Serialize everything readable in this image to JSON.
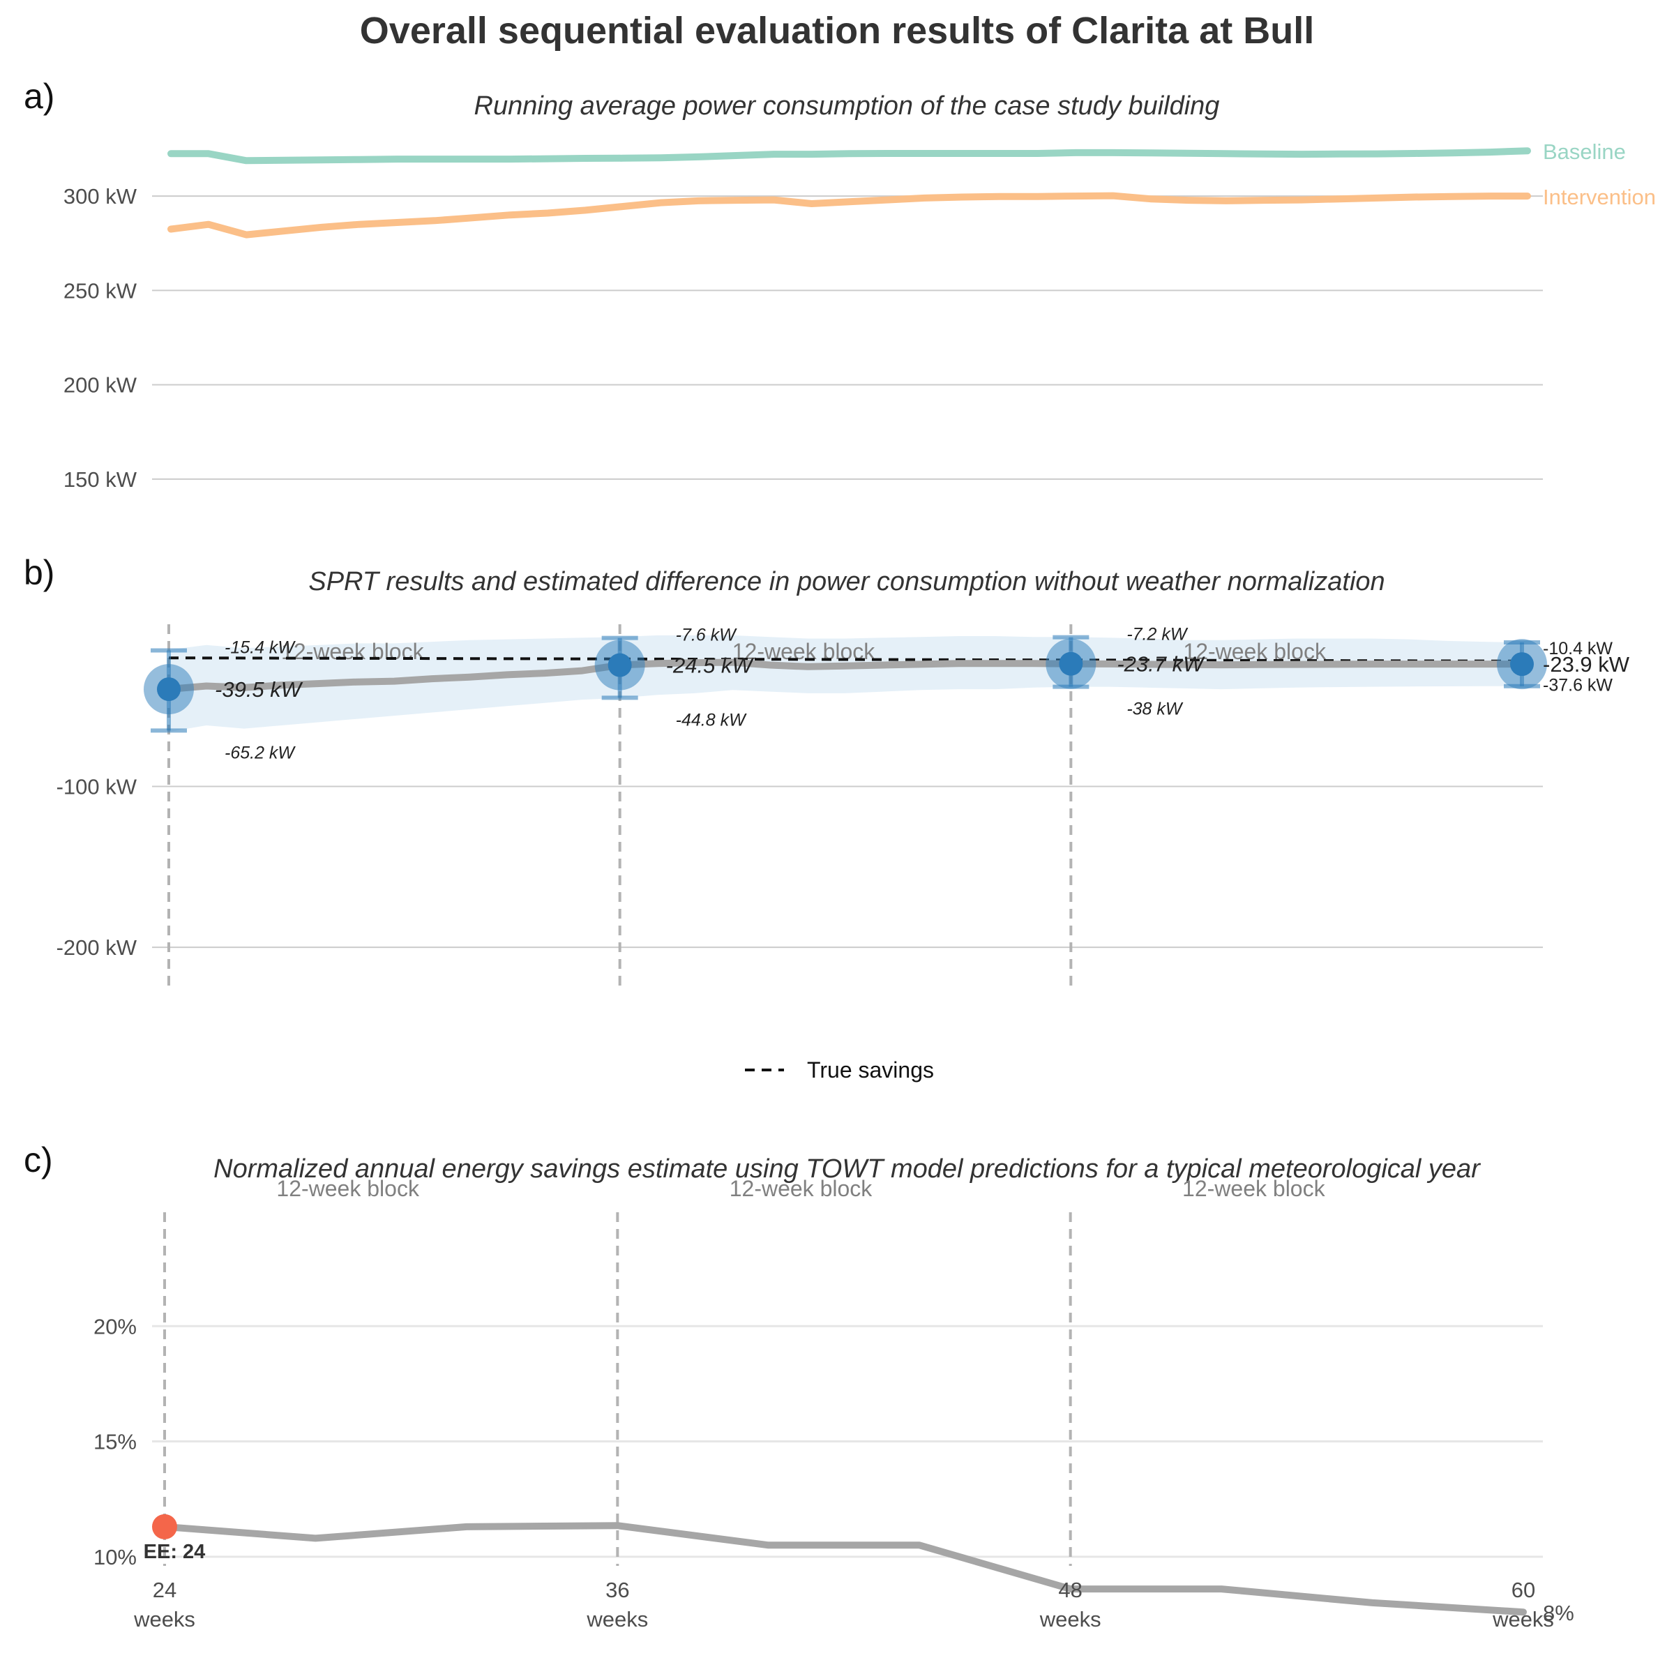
{
  "title": "Overall sequential evaluation results of Clarita at Bull",
  "colors": {
    "baseline": "#99d5c4",
    "intervention": "#fbbf88",
    "difference": "#a6a6a6",
    "point": "#2b7bb9",
    "ribbon": "#dcebf6",
    "true_savings": "#111111",
    "early_end": "#f4664a"
  },
  "chart_data": [
    {
      "tag": "a)",
      "type": "line",
      "title": "Running average power consumption of the case study building",
      "ylim": [
        130,
        330
      ],
      "yticks": [
        150,
        200,
        250,
        300
      ],
      "ytick_labels": [
        "150 kW",
        "200 kW",
        "250 kW",
        "300 kW"
      ],
      "grid": true,
      "x": [
        24,
        25,
        26,
        27,
        28,
        29,
        30,
        31,
        32,
        33,
        34,
        35,
        36,
        37,
        38,
        39,
        40,
        41,
        42,
        43,
        44,
        45,
        46,
        47,
        48,
        49,
        50,
        51,
        52,
        53,
        54,
        55,
        56,
        57,
        58,
        59,
        60
      ],
      "series": [
        {
          "name": "Baseline",
          "values": [
            322.5,
            322.5,
            318.8,
            319,
            319.2,
            319.4,
            319.6,
            319.6,
            319.6,
            319.6,
            319.8,
            320,
            320.1,
            320.3,
            320.8,
            321.5,
            322.2,
            322.2,
            322.5,
            322.6,
            322.6,
            322.6,
            322.6,
            322.6,
            323,
            323,
            322.9,
            322.7,
            322.5,
            322.3,
            322.2,
            322.3,
            322.4,
            322.6,
            322.9,
            323.3,
            324
          ]
        },
        {
          "name": "Intervention",
          "values": [
            282.5,
            285,
            279.5,
            281.5,
            283.5,
            285,
            286,
            287,
            288.5,
            290,
            291,
            292.5,
            294.5,
            296.5,
            297.5,
            297.8,
            298,
            296,
            297,
            298,
            299,
            299.5,
            299.8,
            299.8,
            300,
            300.2,
            298.5,
            297.8,
            297.5,
            297.8,
            298,
            298.5,
            299,
            299.5,
            299.8,
            300,
            300
          ]
        }
      ]
    },
    {
      "tag": "b)",
      "type": "line",
      "title": "SPRT results and estimated difference in power consumption without weather normalization",
      "ylim": [
        -226,
        10
      ],
      "yticks": [
        -100,
        -200
      ],
      "ytick_labels": [
        "-100 kW",
        "-200 kW"
      ],
      "grid": true,
      "block_label": "12-week block",
      "x": [
        24,
        25,
        26,
        27,
        28,
        29,
        30,
        31,
        32,
        33,
        34,
        35,
        36,
        37,
        38,
        39,
        40,
        41,
        42,
        43,
        44,
        45,
        46,
        47,
        48,
        49,
        50,
        51,
        52,
        53,
        54,
        55,
        56,
        57,
        58,
        59,
        60
      ],
      "series": [
        {
          "name": "Estimated difference",
          "values": [
            -39.5,
            -37.5,
            -38.5,
            -37,
            -36,
            -35,
            -34.5,
            -33,
            -32,
            -30.5,
            -29.5,
            -28,
            -24.5,
            -23.5,
            -23,
            -22.8,
            -24.5,
            -25.5,
            -25,
            -24.5,
            -24,
            -23.5,
            -23.5,
            -23.5,
            -23.7,
            -23.8,
            -24,
            -24.2,
            -24.3,
            -24.2,
            -24.1,
            -24,
            -23.9,
            -23.9,
            -23.9,
            -23.9,
            -23.9
          ],
          "upper": [
            -15,
            -12,
            -14,
            -13,
            -12,
            -11,
            -11,
            -10,
            -9,
            -8.5,
            -8,
            -7.5,
            -7,
            -6,
            -6,
            -6,
            -7,
            -8,
            -8,
            -7.5,
            -7,
            -6.5,
            -6.5,
            -7,
            -7,
            -7.5,
            -8,
            -9,
            -9,
            -8.5,
            -8,
            -8,
            -8,
            -8.5,
            -9.5,
            -10,
            -10.5
          ],
          "lower": [
            -66,
            -62,
            -64,
            -62,
            -60,
            -58,
            -56,
            -54,
            -52,
            -50,
            -48,
            -46,
            -45,
            -43,
            -42,
            -40,
            -41,
            -42,
            -42,
            -41,
            -40,
            -39.5,
            -39.5,
            -38.5,
            -38,
            -38,
            -38.5,
            -39,
            -39.5,
            -39,
            -38.5,
            -38.2,
            -38,
            -37.8,
            -37.7,
            -37.6,
            -37.6
          ]
        },
        {
          "name": "True savings",
          "x": [
            24,
            60
          ],
          "values": [
            -20,
            -22
          ]
        }
      ],
      "checkpoints": [
        {
          "week": 24,
          "estimate": -39.5,
          "upper": -15.4,
          "lower": -65.2,
          "estimate_label": "-39.5 kW",
          "upper_label": "-15.4 kW",
          "lower_label": "-65.2 kW"
        },
        {
          "week": 36,
          "estimate": -24.5,
          "upper": -7.6,
          "lower": -44.8,
          "estimate_label": "-24.5 kW",
          "upper_label": "-7.6 kW",
          "lower_label": "-44.8 kW"
        },
        {
          "week": 48,
          "estimate": -23.7,
          "upper": -7.2,
          "lower": -38,
          "estimate_label": "-23.7 kW",
          "upper_label": "-7.2 kW",
          "lower_label": "-38 kW"
        },
        {
          "week": 60,
          "estimate": -23.9,
          "upper": -10.4,
          "lower": -37.6,
          "estimate_label": "-23.9 kW",
          "upper_label": "-10.4 kW",
          "lower_label": "-37.6 kW"
        }
      ],
      "legend": {
        "placement": "bottom",
        "entries": [
          "True savings"
        ]
      }
    },
    {
      "tag": "c)",
      "type": "line",
      "title": "Normalized annual energy savings estimate using TOWT model predictions for a typical meteorological year",
      "ylim": [
        7,
        25
      ],
      "yticks": [
        10,
        15,
        20
      ],
      "ytick_labels": [
        "10%",
        "15%",
        "20%"
      ],
      "grid": true,
      "block_label": "12-week block",
      "xticks": [
        24,
        36,
        48,
        60
      ],
      "xtick_labels": [
        "24",
        "36",
        "48",
        "60"
      ],
      "xtick_unit": "weeks",
      "series": [
        {
          "name": "Savings",
          "x": [
            24,
            28,
            32,
            36,
            40,
            44,
            48,
            52,
            56,
            60
          ],
          "values": [
            11.3,
            10.8,
            11.3,
            11.35,
            10.5,
            10.5,
            8.6,
            8.6,
            8.0,
            7.6
          ]
        }
      ],
      "end_label": "8%",
      "early_end": {
        "week": 24,
        "value": 11.3,
        "label": "EE: 24"
      }
    }
  ]
}
